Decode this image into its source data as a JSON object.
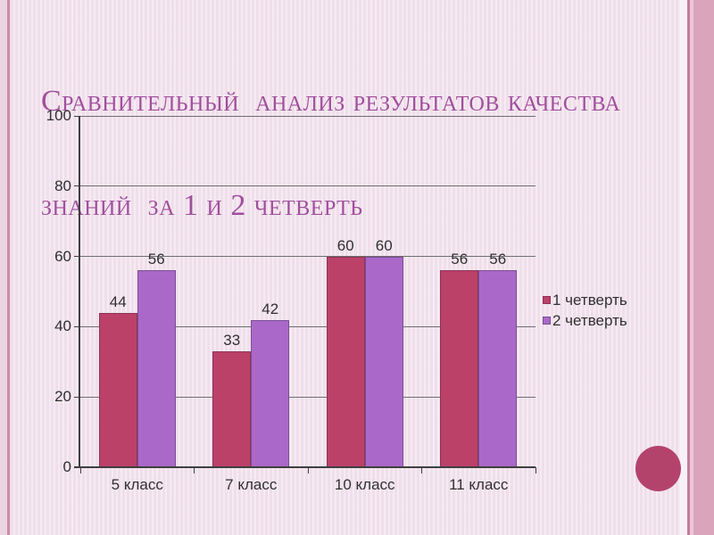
{
  "slide": {
    "title_line1": "Сравнительный  анализ результатов качества",
    "title_line2": "знаний  за 1 и 2 четверть",
    "title_color": "#a14f9e",
    "background_color": "#f2e3ed",
    "accent_circle_color": "#b4436c"
  },
  "chart_data": {
    "type": "bar",
    "categories": [
      "5 класс",
      "7 класс",
      "10 класс",
      "11 класс"
    ],
    "series": [
      {
        "name": "1 четверть",
        "color": "#bb4169",
        "border_color": "#8e3257",
        "values": [
          44,
          33,
          60,
          56
        ]
      },
      {
        "name": "2 четверть",
        "color": "#aa69c8",
        "border_color": "#7b4e94",
        "values": [
          56,
          42,
          60,
          56
        ]
      }
    ],
    "title": "",
    "xlabel": "",
    "ylabel": "",
    "ylim": [
      0,
      100
    ],
    "yticks": [
      0,
      20,
      40,
      60,
      80,
      100
    ],
    "grid": true,
    "data_labels": true,
    "legend_position": "right",
    "axis_color": "#3f3f3f",
    "grid_color": "#6e6e6e",
    "label_color": "#303030"
  }
}
